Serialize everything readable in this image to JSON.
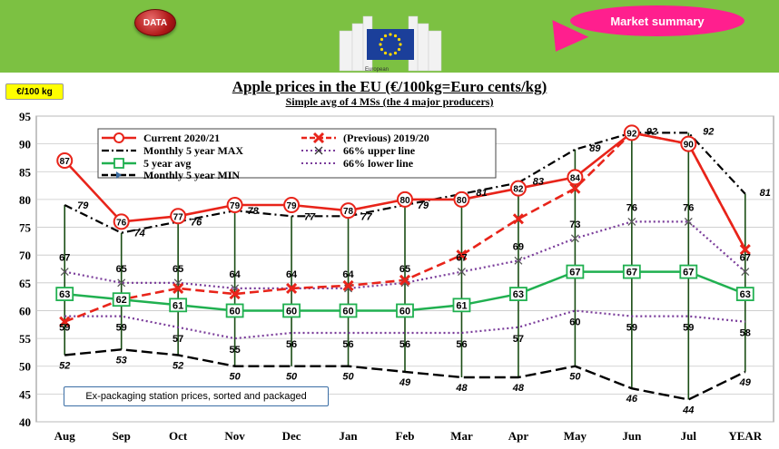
{
  "header": {
    "data_button": "DATA",
    "market_summary": "Market summary",
    "logo_caption": "European"
  },
  "unit_badge": "€/100 kg",
  "chart_data": {
    "type": "line",
    "title": "Apple prices in the EU (€/100kg=Euro cents/kg)",
    "subtitle": "Simple avg of 4 MSs (the 4 major producers)",
    "categories": [
      "Aug",
      "Sep",
      "Oct",
      "Nov",
      "Dec",
      "Jan",
      "Feb",
      "Mar",
      "Apr",
      "May",
      "Jun",
      "Jul",
      "YEAR"
    ],
    "ylim": [
      40,
      95
    ],
    "yticks": [
      40,
      45,
      50,
      55,
      60,
      65,
      70,
      75,
      80,
      85,
      90,
      95
    ],
    "grid": true,
    "legend_position": "top-left",
    "series": [
      {
        "name": "Current 2020/21",
        "color": "#e8241a",
        "values": [
          87,
          76,
          77,
          79,
          79,
          78,
          80,
          80,
          82,
          84,
          92,
          90,
          71
        ]
      },
      {
        "name": "(Previous) 2019/20",
        "color": "#e8241a",
        "values": [
          58,
          62,
          64,
          63,
          64,
          64.5,
          65.5,
          70,
          76.5,
          82,
          92,
          90,
          71
        ]
      },
      {
        "name": "Monthly 5 year MAX",
        "color": "#000000",
        "values": [
          79,
          74,
          76,
          78,
          77,
          77,
          79,
          81,
          83,
          89,
          92,
          92,
          81
        ]
      },
      {
        "name": "5 year avg",
        "color": "#20b050",
        "values": [
          63,
          62,
          61,
          60,
          60,
          60,
          60,
          61,
          63,
          67,
          67,
          67,
          63
        ]
      },
      {
        "name": "Monthly 5 year MIN",
        "color": "#000000",
        "values": [
          52,
          53,
          52,
          50,
          50,
          50,
          49,
          48,
          48,
          50,
          46,
          44,
          49
        ]
      },
      {
        "name": "66% upper line",
        "color": "#7a3c9a",
        "values": [
          67,
          65,
          65,
          64,
          64,
          64,
          65,
          67,
          69,
          73,
          76,
          76,
          67
        ]
      },
      {
        "name": "66% lower line",
        "color": "#7a3c9a",
        "values": [
          59,
          59,
          57,
          55,
          56,
          56,
          56,
          56,
          57,
          60,
          59,
          59,
          58
        ]
      }
    ]
  },
  "footnote": "Ex-packaging station prices, sorted and packaged"
}
